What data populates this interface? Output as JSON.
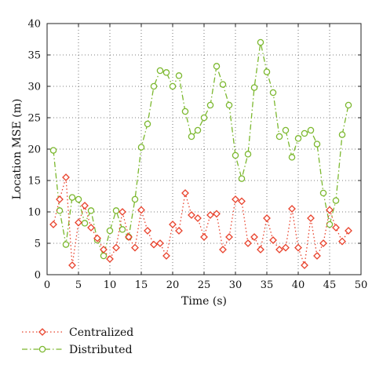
{
  "chart_data": {
    "type": "line",
    "xlabel": "Time (s)",
    "ylabel": "Location MSE (m)",
    "xlim": [
      0,
      50
    ],
    "ylim": [
      0,
      40
    ],
    "xticks": [
      0,
      5,
      10,
      15,
      20,
      25,
      30,
      35,
      40,
      45,
      50
    ],
    "yticks": [
      0,
      5,
      10,
      15,
      20,
      25,
      30,
      35,
      40
    ],
    "grid": true,
    "legend_position": "below",
    "x": [
      1,
      2,
      3,
      4,
      5,
      6,
      7,
      8,
      9,
      10,
      11,
      12,
      13,
      14,
      15,
      16,
      17,
      18,
      19,
      20,
      21,
      22,
      23,
      24,
      25,
      26,
      27,
      28,
      29,
      30,
      31,
      32,
      33,
      34,
      35,
      36,
      37,
      38,
      39,
      40,
      41,
      42,
      43,
      44,
      45,
      46,
      47,
      48
    ],
    "series": [
      {
        "name": "Centralized",
        "color": "#e8412b",
        "marker": "diamond",
        "line_style": "dotted",
        "values": [
          8.0,
          12.0,
          15.5,
          1.5,
          8.3,
          11.0,
          7.5,
          5.8,
          4.0,
          2.5,
          4.3,
          10.0,
          6.0,
          4.3,
          10.3,
          7.0,
          4.8,
          5.0,
          3.0,
          8.0,
          7.0,
          13.0,
          9.5,
          9.0,
          6.0,
          9.5,
          9.7,
          4.0,
          6.0,
          12.0,
          11.7,
          5.0,
          6.0,
          4.0,
          9.0,
          5.5,
          4.0,
          4.3,
          10.5,
          4.3,
          1.5,
          9.0,
          3.0,
          5.0,
          10.3,
          7.5,
          5.3,
          7.0
        ]
      },
      {
        "name": "Distributed",
        "color": "#7cb82f",
        "marker": "circle",
        "line_style": "dash-dot",
        "values": [
          19.8,
          10.2,
          4.8,
          12.3,
          12.0,
          8.2,
          10.2,
          5.5,
          3.0,
          7.0,
          10.2,
          7.2,
          6.0,
          12.0,
          20.3,
          24.0,
          30.0,
          32.5,
          32.2,
          30.0,
          31.7,
          26.0,
          22.0,
          23.0,
          25.0,
          27.0,
          33.2,
          30.3,
          27.0,
          19.0,
          15.3,
          19.2,
          29.8,
          37.0,
          32.3,
          29.0,
          22.0,
          23.0,
          18.7,
          21.7,
          22.5,
          23.0,
          20.8,
          13.0,
          8.0,
          11.8,
          22.3,
          27.0
        ]
      }
    ]
  }
}
